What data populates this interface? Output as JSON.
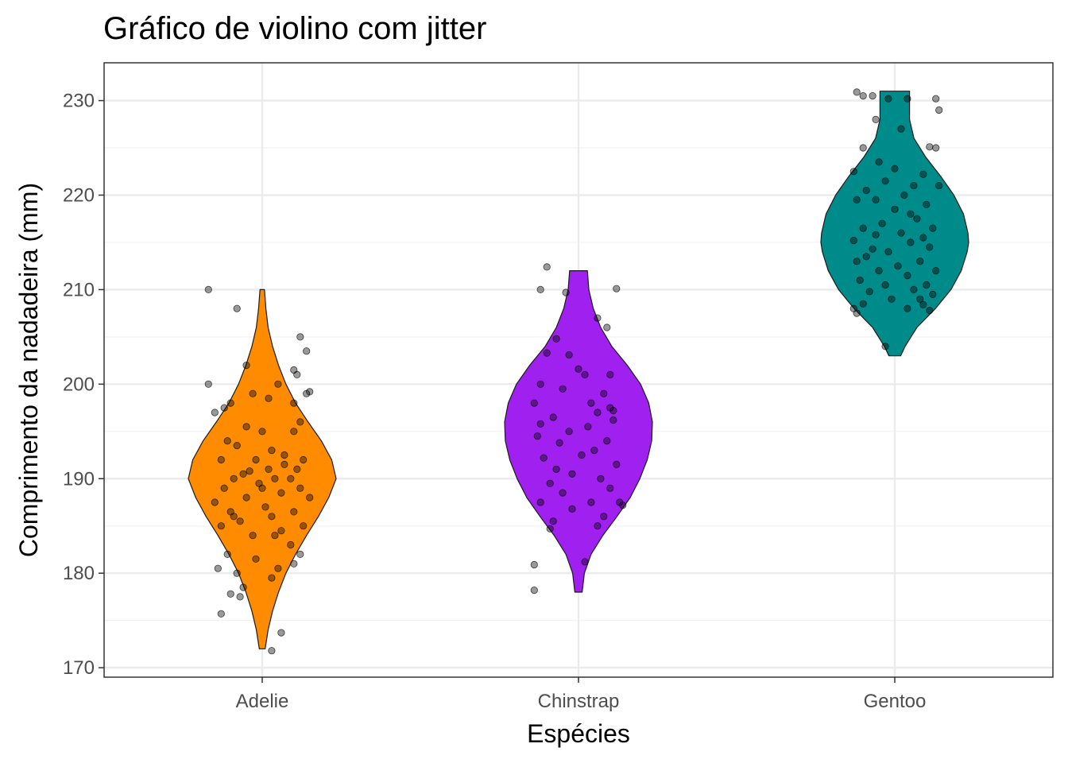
{
  "chart_data": {
    "type": "violin",
    "title": "Gráfico de violino com jitter",
    "xlabel": "Espécies",
    "ylabel": "Comprimento da nadadeira (mm)",
    "categories": [
      "Adelie",
      "Chinstrap",
      "Gentoo"
    ],
    "ylim": [
      169,
      234
    ],
    "yticks": [
      170,
      180,
      190,
      200,
      210,
      220,
      230
    ],
    "grid": true,
    "legend": "none",
    "colors": {
      "Adelie": "#ff8c00",
      "Chinstrap": "#a020f0",
      "Gentoo": "#008b8b",
      "points": "#000000"
    },
    "violins": [
      {
        "category": "Adelie",
        "min": 172,
        "max": 210,
        "profile": [
          [
            172,
            0.04
          ],
          [
            174,
            0.08
          ],
          [
            176,
            0.14
          ],
          [
            178,
            0.22
          ],
          [
            180,
            0.32
          ],
          [
            182,
            0.45
          ],
          [
            184,
            0.6
          ],
          [
            186,
            0.76
          ],
          [
            188,
            0.9
          ],
          [
            190,
            1.0
          ],
          [
            192,
            0.94
          ],
          [
            194,
            0.8
          ],
          [
            196,
            0.62
          ],
          [
            198,
            0.45
          ],
          [
            200,
            0.32
          ],
          [
            202,
            0.22
          ],
          [
            204,
            0.14
          ],
          [
            206,
            0.08
          ],
          [
            208,
            0.05
          ],
          [
            210,
            0.03
          ]
        ]
      },
      {
        "category": "Chinstrap",
        "min": 178,
        "max": 212,
        "profile": [
          [
            178,
            0.05
          ],
          [
            180,
            0.08
          ],
          [
            182,
            0.17
          ],
          [
            184,
            0.33
          ],
          [
            186,
            0.52
          ],
          [
            188,
            0.7
          ],
          [
            190,
            0.83
          ],
          [
            192,
            0.93
          ],
          [
            194,
            0.99
          ],
          [
            196,
            1.0
          ],
          [
            198,
            0.95
          ],
          [
            200,
            0.84
          ],
          [
            202,
            0.66
          ],
          [
            204,
            0.45
          ],
          [
            206,
            0.3
          ],
          [
            208,
            0.2
          ],
          [
            210,
            0.14
          ],
          [
            212,
            0.12
          ]
        ]
      },
      {
        "category": "Gentoo",
        "min": 203,
        "max": 231,
        "profile": [
          [
            203,
            0.08
          ],
          [
            204,
            0.14
          ],
          [
            206,
            0.3
          ],
          [
            208,
            0.55
          ],
          [
            210,
            0.76
          ],
          [
            212,
            0.9
          ],
          [
            214,
            0.98
          ],
          [
            215,
            1.0
          ],
          [
            216,
            0.99
          ],
          [
            218,
            0.93
          ],
          [
            220,
            0.8
          ],
          [
            222,
            0.62
          ],
          [
            224,
            0.42
          ],
          [
            226,
            0.26
          ],
          [
            228,
            0.2
          ],
          [
            230,
            0.2
          ],
          [
            231,
            0.2
          ]
        ]
      }
    ],
    "points": [
      {
        "category": "Adelie",
        "values": [
          [
            -0.17,
            210
          ],
          [
            -0.08,
            208
          ],
          [
            -0.05,
            202
          ],
          [
            0.12,
            205
          ],
          [
            0.14,
            203.5
          ],
          [
            0.1,
            201.5
          ],
          [
            0.11,
            201
          ],
          [
            -0.17,
            200
          ],
          [
            0.14,
            199
          ],
          [
            0.1,
            198
          ],
          [
            0.05,
            200
          ],
          [
            -0.1,
            198
          ],
          [
            -0.12,
            197.5
          ],
          [
            -0.03,
            199
          ],
          [
            0.02,
            198.5
          ],
          [
            -0.15,
            197
          ],
          [
            0.12,
            196
          ],
          [
            0.1,
            195
          ],
          [
            -0.05,
            195.5
          ],
          [
            0.0,
            195
          ],
          [
            -0.11,
            194
          ],
          [
            0.03,
            193
          ],
          [
            -0.08,
            193.5
          ],
          [
            0.13,
            192
          ],
          [
            -0.13,
            192
          ],
          [
            0.07,
            192.5
          ],
          [
            -0.02,
            192
          ],
          [
            0.11,
            191
          ],
          [
            0.02,
            191
          ],
          [
            -0.06,
            190.5
          ],
          [
            0.09,
            190
          ],
          [
            -0.09,
            190
          ],
          [
            0.04,
            190
          ],
          [
            -0.01,
            189.5
          ],
          [
            0.12,
            189
          ],
          [
            -0.12,
            189
          ],
          [
            0.06,
            188.5
          ],
          [
            -0.05,
            188
          ],
          [
            0.15,
            188
          ],
          [
            -0.15,
            187.5
          ],
          [
            0.01,
            187
          ],
          [
            0.1,
            186.5
          ],
          [
            -0.1,
            186.5
          ],
          [
            0.03,
            186
          ],
          [
            -0.07,
            185.5
          ],
          [
            0.13,
            185
          ],
          [
            -0.13,
            185
          ],
          [
            0.06,
            184.5
          ],
          [
            -0.03,
            184
          ],
          [
            0.09,
            183
          ],
          [
            -0.11,
            182
          ],
          [
            0.12,
            182
          ],
          [
            -0.02,
            181.5
          ],
          [
            0.05,
            180.5
          ],
          [
            -0.08,
            180
          ],
          [
            0.1,
            181
          ],
          [
            -0.14,
            180.5
          ],
          [
            0.03,
            179.5
          ],
          [
            -0.06,
            178.5
          ],
          [
            -0.07,
            177.5
          ],
          [
            -0.1,
            177.8
          ],
          [
            -0.13,
            175.7
          ],
          [
            0.06,
            173.7
          ],
          [
            0.03,
            171.8
          ],
          [
            0.15,
            199.2
          ],
          [
            -0.04,
            190.8
          ],
          [
            0.07,
            191.5
          ],
          [
            0.0,
            189
          ],
          [
            -0.09,
            186
          ],
          [
            0.04,
            184
          ]
        ]
      },
      {
        "category": "Chinstrap",
        "values": [
          [
            -0.1,
            212.4
          ],
          [
            -0.12,
            210
          ],
          [
            -0.04,
            209.7
          ],
          [
            0.12,
            210.1
          ],
          [
            -0.07,
            204.8
          ],
          [
            0.06,
            207
          ],
          [
            0.09,
            206
          ],
          [
            -0.1,
            203.3
          ],
          [
            -0.03,
            203.1
          ],
          [
            0.0,
            201.6
          ],
          [
            -0.12,
            200
          ],
          [
            0.1,
            201
          ],
          [
            0.02,
            201
          ],
          [
            0.08,
            199
          ],
          [
            -0.05,
            199.5
          ],
          [
            0.04,
            198
          ],
          [
            -0.14,
            198
          ],
          [
            0.1,
            197.5
          ],
          [
            0.06,
            197
          ],
          [
            -0.08,
            196.5
          ],
          [
            -0.12,
            195.8
          ],
          [
            0.11,
            196.2
          ],
          [
            0.03,
            195.5
          ],
          [
            -0.03,
            195
          ],
          [
            -0.13,
            194.5
          ],
          [
            0.09,
            194
          ],
          [
            -0.06,
            193.8
          ],
          [
            0.05,
            193
          ],
          [
            -0.11,
            192.2
          ],
          [
            0.01,
            192.5
          ],
          [
            0.12,
            191.5
          ],
          [
            -0.02,
            190.5
          ],
          [
            0.07,
            190
          ],
          [
            -0.09,
            189.5
          ],
          [
            0.1,
            189
          ],
          [
            -0.05,
            188.5
          ],
          [
            0.13,
            187.5
          ],
          [
            -0.12,
            187.5
          ],
          [
            0.04,
            187.5
          ],
          [
            -0.02,
            186.8
          ],
          [
            0.08,
            186
          ],
          [
            -0.08,
            185.5
          ],
          [
            0.06,
            185
          ],
          [
            -0.09,
            184.7
          ],
          [
            0.02,
            181.2
          ],
          [
            -0.14,
            180.9
          ],
          [
            -0.14,
            178.2
          ],
          [
            0.14,
            187.2
          ],
          [
            0.11,
            197.2
          ],
          [
            -0.07,
            191
          ]
        ]
      },
      {
        "category": "Gentoo",
        "values": [
          [
            -0.12,
            230.9
          ],
          [
            -0.1,
            230.5
          ],
          [
            -0.07,
            230.5
          ],
          [
            0.04,
            230.2
          ],
          [
            -0.02,
            230.2
          ],
          [
            0.13,
            230.2
          ],
          [
            0.14,
            229
          ],
          [
            -0.06,
            228
          ],
          [
            0.02,
            227
          ],
          [
            -0.1,
            225
          ],
          [
            0.11,
            225.1
          ],
          [
            0.13,
            225
          ],
          [
            -0.05,
            223.5
          ],
          [
            0.0,
            222.8
          ],
          [
            0.09,
            222.2
          ],
          [
            -0.13,
            222.5
          ],
          [
            -0.03,
            221.5
          ],
          [
            0.06,
            221
          ],
          [
            0.14,
            221
          ],
          [
            -0.09,
            220.5
          ],
          [
            0.03,
            220
          ],
          [
            -0.06,
            219.5
          ],
          [
            -0.12,
            219.5
          ],
          [
            0.1,
            219
          ],
          [
            0.0,
            218.5
          ],
          [
            0.07,
            217.5
          ],
          [
            -0.04,
            217
          ],
          [
            0.12,
            216.5
          ],
          [
            -0.1,
            216.5
          ],
          [
            0.02,
            216
          ],
          [
            -0.06,
            215.8
          ],
          [
            0.09,
            215.5
          ],
          [
            -0.13,
            215.2
          ],
          [
            0.05,
            215
          ],
          [
            0.11,
            214.5
          ],
          [
            -0.02,
            214
          ],
          [
            -0.09,
            213.5
          ],
          [
            0.08,
            213
          ],
          [
            -0.12,
            213
          ],
          [
            0.01,
            212.5
          ],
          [
            -0.05,
            212
          ],
          [
            0.13,
            212
          ],
          [
            0.04,
            211.5
          ],
          [
            -0.11,
            211
          ],
          [
            0.1,
            210.5
          ],
          [
            -0.03,
            210.5
          ],
          [
            0.06,
            210
          ],
          [
            -0.08,
            209.8
          ],
          [
            0.12,
            209.5
          ],
          [
            -0.01,
            209
          ],
          [
            0.08,
            209
          ],
          [
            -0.1,
            208.5
          ],
          [
            0.04,
            208
          ],
          [
            -0.13,
            208
          ],
          [
            0.11,
            207.8
          ],
          [
            -0.03,
            204
          ],
          [
            -0.12,
            207.5
          ],
          [
            0.09,
            208.4
          ],
          [
            -0.07,
            214.3
          ],
          [
            0.05,
            218
          ]
        ]
      }
    ]
  }
}
